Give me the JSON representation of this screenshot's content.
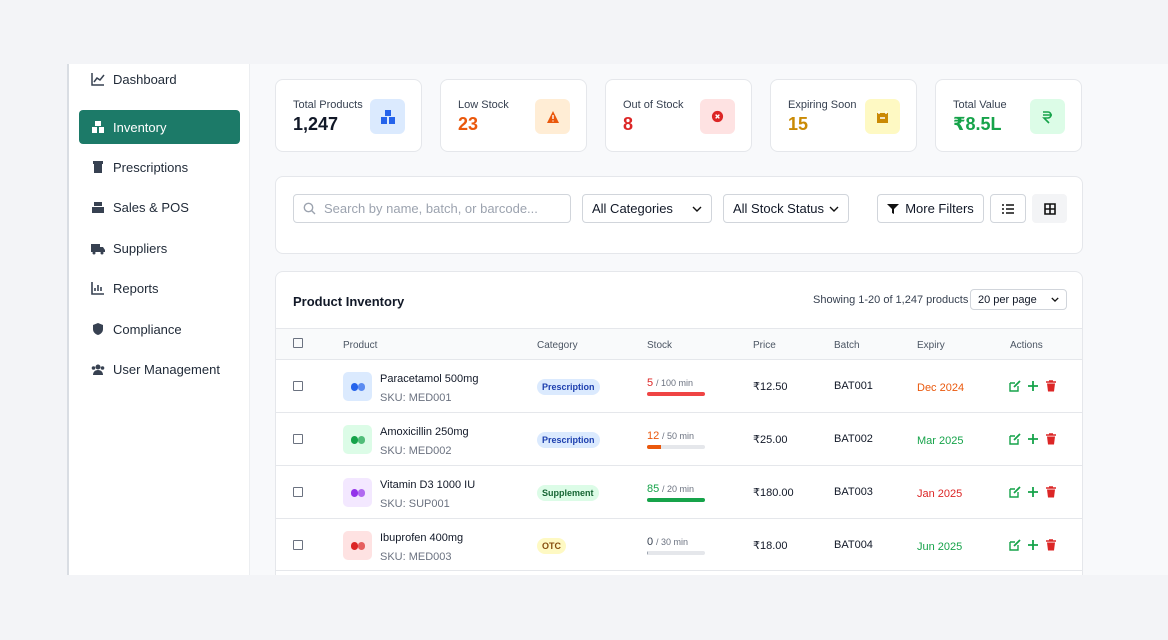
{
  "sidebar": {
    "items": [
      "Dashboard",
      "Inventory",
      "Prescriptions",
      "Sales & POS",
      "Suppliers",
      "Reports",
      "Compliance",
      "User Management"
    ]
  },
  "stats": [
    {
      "label": "Total Products",
      "value": "1,247"
    },
    {
      "label": "Low Stock",
      "value": "23"
    },
    {
      "label": "Out of Stock",
      "value": "8"
    },
    {
      "label": "Expiring Soon",
      "value": "15"
    },
    {
      "label": "Total Value",
      "value": "₹8.5L"
    }
  ],
  "filters": {
    "search_placeholder": "Search by name, batch, or barcode...",
    "category": "All Categories",
    "status": "All Stock Status",
    "more": "More Filters"
  },
  "table": {
    "title": "Product Inventory",
    "showing": "Showing 1-20 of 1,247 products",
    "per_page": "20 per page",
    "columns": [
      "Product",
      "Category",
      "Stock",
      "Price",
      "Batch",
      "Expiry",
      "Actions"
    ],
    "rows": [
      {
        "name": "Paracetamol 500mg",
        "sku": "SKU: MED001",
        "category": "Prescription",
        "stock": 5,
        "min_label": "/ 100 min",
        "price": "₹12.50",
        "batch": "BAT001",
        "expiry": "Dec 2024"
      },
      {
        "name": "Amoxicillin 250mg",
        "sku": "SKU: MED002",
        "category": "Prescription",
        "stock": 12,
        "min_label": "/ 50 min",
        "price": "₹25.00",
        "batch": "BAT002",
        "expiry": "Mar 2025"
      },
      {
        "name": "Vitamin D3 1000 IU",
        "sku": "SKU: SUP001",
        "category": "Supplement",
        "stock": 85,
        "min_label": "/ 20 min",
        "price": "₹180.00",
        "batch": "BAT003",
        "expiry": "Jan 2025"
      },
      {
        "name": "Ibuprofen 400mg",
        "sku": "SKU: MED003",
        "category": "OTC",
        "stock": 0,
        "min_label": "/ 30 min",
        "price": "₹18.00",
        "batch": "BAT004",
        "expiry": "Jun 2025"
      }
    ]
  }
}
